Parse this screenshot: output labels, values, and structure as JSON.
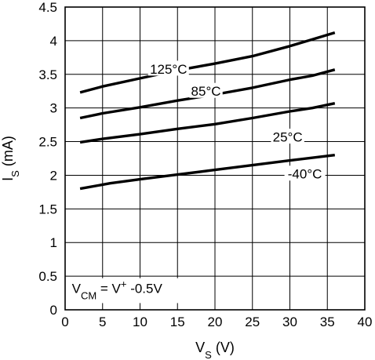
{
  "chart_data": {
    "type": "line",
    "xlabel": {
      "main": "V",
      "sub": "S",
      "unit": " (V)"
    },
    "ylabel": {
      "main": "I",
      "sub": "S",
      "unit": " (mA)"
    },
    "xlim": [
      0,
      40
    ],
    "ylim": [
      0,
      4.5
    ],
    "xticks": [
      0,
      5,
      10,
      15,
      20,
      25,
      30,
      35,
      40
    ],
    "yticks": [
      0,
      0.5,
      1,
      1.5,
      2,
      2.5,
      3,
      3.5,
      4,
      4.5
    ],
    "xtick_labels": [
      "0",
      "5",
      "10",
      "15",
      "20",
      "25",
      "30",
      "35",
      "40"
    ],
    "ytick_labels": [
      "0",
      "0.5",
      "1",
      "1.5",
      "2",
      "2.5",
      "3",
      "3.5",
      "4",
      "4.5"
    ],
    "grid": true,
    "series": [
      {
        "name": "125°C",
        "x": [
          2,
          5,
          10,
          15,
          20,
          25,
          30,
          33,
          36
        ],
        "y": [
          3.23,
          3.32,
          3.44,
          3.56,
          3.66,
          3.77,
          3.92,
          4.02,
          4.12
        ]
      },
      {
        "name": "85°C",
        "x": [
          2,
          5,
          10,
          15,
          20,
          25,
          30,
          33,
          36
        ],
        "y": [
          2.85,
          2.92,
          3.01,
          3.11,
          3.2,
          3.3,
          3.42,
          3.48,
          3.57
        ]
      },
      {
        "name": "25°C",
        "x": [
          2,
          5,
          10,
          15,
          20,
          25,
          30,
          33,
          36
        ],
        "y": [
          2.49,
          2.54,
          2.61,
          2.69,
          2.76,
          2.85,
          2.95,
          3.0,
          3.07
        ]
      },
      {
        "name": "-40°C",
        "x": [
          2,
          6,
          10,
          15,
          20,
          25,
          30,
          36
        ],
        "y": [
          1.8,
          1.88,
          1.94,
          2.01,
          2.08,
          2.15,
          2.22,
          2.3
        ]
      }
    ],
    "series_label_anchors": [
      {
        "name": "125°C",
        "x": 13.8,
        "y": 3.58
      },
      {
        "name": "85°C",
        "x": 18.8,
        "y": 3.25
      },
      {
        "name": "25°C",
        "x": 29.7,
        "y": 2.57
      },
      {
        "name": "-40°C",
        "x": 32.0,
        "y": 2.02
      }
    ],
    "annotation": {
      "parts": [
        "V",
        "CM",
        " = V",
        "+",
        " -0.5V"
      ]
    },
    "colors": {
      "line": "#000000",
      "grid": "#000000",
      "background": "#ffffff"
    }
  }
}
